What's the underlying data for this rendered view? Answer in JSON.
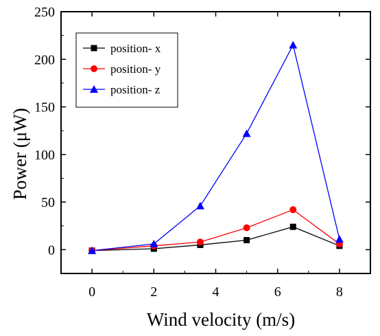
{
  "chart_data": {
    "type": "line",
    "xlabel": "Wind velocity (m/s)",
    "ylabel": "Power (μW)",
    "xlim": [
      -1,
      9
    ],
    "ylim": [
      -25,
      250
    ],
    "xticks": [
      0,
      2,
      4,
      6,
      8
    ],
    "yticks": [
      0,
      50,
      100,
      150,
      200,
      250
    ],
    "x": [
      0,
      2,
      3.5,
      5,
      6.5,
      8
    ],
    "grid": false,
    "legend": "top-left",
    "series": [
      {
        "name": "position- x",
        "color": "#000000",
        "marker": "square",
        "values": [
          -1,
          1,
          5,
          10,
          24,
          4
        ]
      },
      {
        "name": "position- y",
        "color": "#ff0000",
        "marker": "circle",
        "values": [
          -1,
          4,
          8,
          23,
          42,
          6
        ]
      },
      {
        "name": "position- z",
        "color": "#0000ff",
        "marker": "triangle",
        "values": [
          -1,
          6,
          46,
          122,
          215,
          11
        ]
      }
    ]
  }
}
